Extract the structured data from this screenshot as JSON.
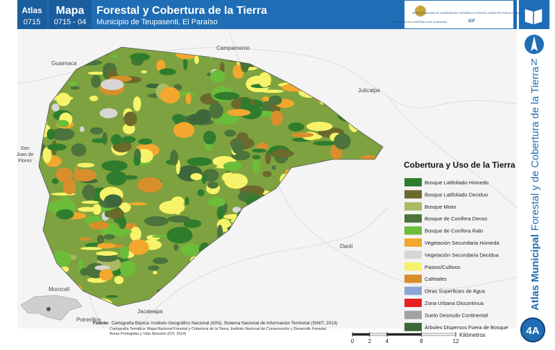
{
  "header": {
    "atlas_label": "Atlas",
    "atlas_code": "0715",
    "map_label": "Mapa",
    "map_code": "0715 - 04",
    "title": "Forestal y Cobertura de la Tierra",
    "subtitle": "Municipio de Teupasenti, El Paraíso",
    "logo_text": "INSTITUTO NACIONAL DE CONSERVACIÓN Y DESARROLLO FORESTAL, ÁREAS PROTEGIDAS Y VIDA SILVESTRE",
    "logo_code": "ICF",
    "gov_text": "GOBIERNO DE LA REPÚBLICA DE HONDURAS"
  },
  "side": {
    "north": "N",
    "atlas_bold": "Atlas Municipal",
    "atlas_rest": "Forestal y de Cobertura de la Tierra",
    "sheet": "4A"
  },
  "places": [
    "Campamento",
    "Guaimaca",
    "Juticalpa",
    "San",
    "Juan de",
    "Flores",
    "Danlí",
    "Morocelí",
    "Jacaleapa",
    "Potrerillos"
  ],
  "legend": {
    "title": "Cobertura y Uso de la Tierra",
    "items": [
      {
        "label": "Bosque Latifoliado Húmedo",
        "color": "#2f7d2c"
      },
      {
        "label": "Bosque Latifoliado Deciduo",
        "color": "#6b6a2c"
      },
      {
        "label": "Bosque Mixto",
        "color": "#a9b964"
      },
      {
        "label": "Bosque de Conífera Denso",
        "color": "#4b733b"
      },
      {
        "label": "Bosque de Conífera Ralo",
        "color": "#6bbd3a"
      },
      {
        "label": "Vegetación Secundaria Húmeda",
        "color": "#f2a72e"
      },
      {
        "label": "Vegetación Secundaria Decidua",
        "color": "#d6d6d6"
      },
      {
        "label": "Pastos/Cultivos",
        "color": "#f6f36a"
      },
      {
        "label": "Cafetales",
        "color": "#d88f2b"
      },
      {
        "label": "Otras Superficies de Agua",
        "color": "#8aa6d6"
      },
      {
        "label": "Zona Urbana Discontinua",
        "color": "#e52121"
      },
      {
        "label": "Suelo Desnudo Continental",
        "color": "#a2a2a2"
      },
      {
        "label": "Árboles Dispersos Fuera de Bosque",
        "color": "#3d673b"
      }
    ]
  },
  "source": {
    "label": "Fuente:",
    "lines": [
      "Cartografía Básica: Instituto Geográfico Nacional (IGN), Sistema Nacional de Información Territorial (SINIT, 2013)",
      "Cartografía Temática: Mapa Nacional Forestal y Cobertura de la Tierra, Instituto Nacional de Conservación y Desarrollo Forestal,",
      "Áreas Protegidas y Vida Silvestre (ICF, 2014)"
    ]
  },
  "scale": {
    "ticks": [
      0,
      2,
      4,
      8,
      12
    ],
    "unit": "Kilómetros"
  }
}
